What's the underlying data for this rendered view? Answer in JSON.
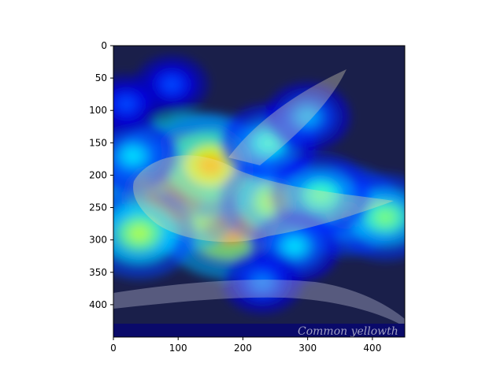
{
  "chart_data": {
    "type": "heatmap",
    "title": "",
    "xlabel": "",
    "ylabel": "",
    "xlim": [
      0,
      450
    ],
    "ylim": [
      450,
      0
    ],
    "image_size": [
      450,
      450
    ],
    "x_ticks": [
      0,
      100,
      200,
      300,
      400
    ],
    "y_ticks": [
      0,
      50,
      100,
      150,
      200,
      250,
      300,
      350,
      400
    ],
    "colormap": "jet",
    "overlay_text": "Common yellowth",
    "hotspots": [
      {
        "x": 120,
        "y": 205,
        "intensity": 1.0
      },
      {
        "x": 180,
        "y": 270,
        "intensity": 0.85
      },
      {
        "x": 95,
        "y": 235,
        "intensity": 0.8
      },
      {
        "x": 150,
        "y": 185,
        "intensity": 0.7
      },
      {
        "x": 250,
        "y": 240,
        "intensity": 0.55
      },
      {
        "x": 360,
        "y": 255,
        "intensity": 0.55
      },
      {
        "x": 420,
        "y": 265,
        "intensity": 0.5
      },
      {
        "x": 320,
        "y": 230,
        "intensity": 0.45
      },
      {
        "x": 40,
        "y": 290,
        "intensity": 0.55
      },
      {
        "x": 280,
        "y": 310,
        "intensity": 0.35
      },
      {
        "x": 240,
        "y": 150,
        "intensity": 0.4
      },
      {
        "x": 300,
        "y": 110,
        "intensity": 0.3
      },
      {
        "x": 30,
        "y": 170,
        "intensity": 0.35
      },
      {
        "x": 230,
        "y": 365,
        "intensity": 0.25
      },
      {
        "x": 90,
        "y": 60,
        "intensity": 0.2
      },
      {
        "x": 20,
        "y": 90,
        "intensity": 0.2
      }
    ]
  }
}
